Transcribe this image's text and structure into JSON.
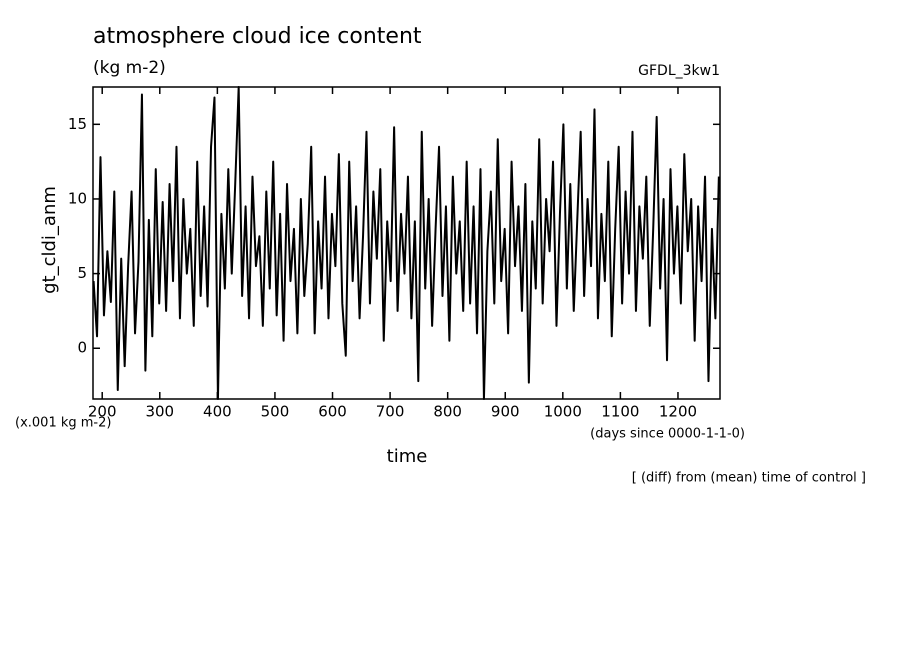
{
  "chart_data": {
    "type": "line",
    "title": "atmosphere cloud ice content",
    "subtitle": "(kg m-2)",
    "source_label": "GFDL_3kw1",
    "y_label": "gt_cldi_anm",
    "x_label": "time",
    "y_unit_note": "(x.001 kg m-2)",
    "x_unit_note": "(days since 0000-1-1-0)",
    "footnote": "[ (diff) from (mean) time of control ]",
    "color": "#000000",
    "xlim": [
      184,
      1273
    ],
    "ylim": [
      -3.4,
      17.5
    ],
    "xticks": [
      200,
      300,
      400,
      500,
      600,
      700,
      800,
      900,
      1000,
      1100,
      1200
    ],
    "yticks": [
      0,
      5,
      10,
      15
    ],
    "x": [
      185,
      191,
      197,
      203,
      209,
      215,
      221,
      227,
      233,
      239,
      245,
      251,
      257,
      263,
      269,
      275,
      281,
      287,
      293,
      299,
      305,
      311,
      317,
      323,
      329,
      335,
      341,
      347,
      353,
      359,
      365,
      371,
      377,
      383,
      389,
      395,
      401,
      407,
      413,
      419,
      425,
      431,
      437,
      443,
      449,
      455,
      461,
      467,
      473,
      479,
      485,
      491,
      497,
      503,
      509,
      515,
      521,
      527,
      533,
      539,
      545,
      551,
      557,
      563,
      569,
      575,
      581,
      587,
      593,
      599,
      605,
      611,
      617,
      623,
      629,
      635,
      641,
      647,
      653,
      659,
      665,
      671,
      677,
      683,
      689,
      695,
      701,
      707,
      713,
      719,
      725,
      731,
      737,
      743,
      749,
      755,
      761,
      767,
      773,
      779,
      785,
      791,
      797,
      803,
      809,
      815,
      821,
      827,
      833,
      839,
      845,
      851,
      857,
      863,
      869,
      875,
      881,
      887,
      893,
      899,
      905,
      911,
      917,
      923,
      929,
      935,
      941,
      947,
      953,
      959,
      965,
      971,
      977,
      983,
      989,
      995,
      1001,
      1007,
      1013,
      1019,
      1025,
      1031,
      1037,
      1043,
      1049,
      1055,
      1061,
      1067,
      1073,
      1079,
      1085,
      1091,
      1097,
      1103,
      1109,
      1115,
      1121,
      1127,
      1133,
      1139,
      1145,
      1151,
      1157,
      1163,
      1169,
      1175,
      1181,
      1187,
      1193,
      1199,
      1205,
      1211,
      1217,
      1223,
      1229,
      1235,
      1241,
      1247,
      1253,
      1259,
      1265,
      1271
    ],
    "values": [
      4.5,
      0.8,
      12.8,
      2.2,
      6.5,
      3.1,
      10.5,
      -2.8,
      6.0,
      -1.2,
      5.5,
      10.5,
      1.0,
      5.8,
      17.0,
      -1.5,
      8.6,
      0.8,
      12.0,
      3.0,
      9.8,
      2.5,
      11.0,
      4.5,
      13.5,
      2.0,
      10.0,
      5.0,
      8.0,
      1.5,
      12.5,
      3.5,
      9.5,
      2.8,
      13.5,
      16.8,
      -3.4,
      9.0,
      4.0,
      12.0,
      5.0,
      11.0,
      17.5,
      3.5,
      9.5,
      2.0,
      11.5,
      5.5,
      7.5,
      1.5,
      10.5,
      4.0,
      12.5,
      2.2,
      9.0,
      0.5,
      11.0,
      4.5,
      8.0,
      1.0,
      10.0,
      3.5,
      7.0,
      13.5,
      1.0,
      8.5,
      4.0,
      11.5,
      2.0,
      9.0,
      5.5,
      13.0,
      3.0,
      -0.5,
      12.5,
      4.5,
      9.5,
      2.0,
      7.5,
      14.5,
      3.0,
      10.5,
      6.0,
      12.0,
      0.5,
      8.5,
      4.5,
      14.8,
      2.5,
      9.0,
      5.0,
      11.5,
      2.0,
      8.5,
      -2.2,
      14.5,
      4.0,
      10.0,
      1.5,
      8.0,
      13.5,
      3.5,
      9.5,
      0.5,
      11.5,
      5.0,
      8.5,
      2.5,
      12.5,
      3.0,
      9.5,
      1.0,
      12.0,
      -3.4,
      6.5,
      10.5,
      3.0,
      14.0,
      4.5,
      8.0,
      1.0,
      12.5,
      5.5,
      9.5,
      2.5,
      11.0,
      -2.3,
      8.5,
      4.0,
      14.0,
      3.0,
      10.0,
      6.5,
      12.5,
      1.5,
      9.0,
      15.0,
      4.0,
      11.0,
      2.5,
      8.5,
      14.5,
      3.5,
      10.0,
      5.5,
      16.0,
      2.0,
      9.0,
      4.5,
      12.5,
      0.8,
      8.0,
      13.5,
      3.0,
      10.5,
      5.0,
      14.5,
      2.5,
      9.5,
      6.0,
      11.5,
      1.5,
      8.0,
      15.5,
      4.0,
      10.0,
      -0.8,
      12.0,
      5.0,
      9.5,
      3.0,
      13.0,
      6.5,
      10.0,
      0.5,
      9.5,
      4.5,
      11.5,
      -2.2,
      8.0,
      2.0,
      11.5
    ]
  }
}
